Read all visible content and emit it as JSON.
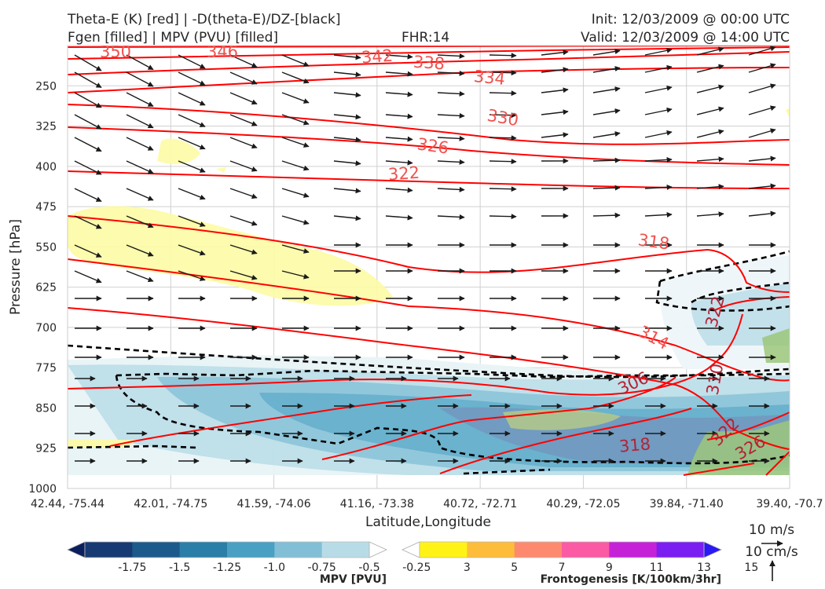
{
  "header": {
    "title_left_1": "Theta-E (K) [red] | -D(theta-E)/DZ-[black]",
    "title_left_2": "Fgen [filled] | MPV (PVU) [filled]",
    "title_center": "FHR:14",
    "title_right_1": "Init: 12/03/2009 @ 00:00 UTC",
    "title_right_2": "Valid: 12/03/2009 @ 14:00 UTC"
  },
  "chart_data": {
    "type": "cross-section",
    "xlabel": "Latitude,Longitude",
    "ylabel": "Pressure [hPa]",
    "x_ticks": [
      "42.44, -75.44",
      "42.01, -74.75",
      "41.59, -74.06",
      "41.16, -73.38",
      "40.72, -72.71",
      "40.29, -72.05",
      "39.84, -71.40",
      "39.40, -70.7"
    ],
    "y_ticks": [
      250,
      325,
      400,
      475,
      550,
      625,
      700,
      775,
      850,
      925,
      1000
    ],
    "ylim": [
      1000,
      175
    ],
    "grid": true,
    "theta_e_contour_labels": [
      "350",
      "346",
      "342",
      "338",
      "334",
      "330",
      "326",
      "322",
      "318",
      "314",
      "306",
      "322",
      "310",
      "318",
      "322",
      "326"
    ],
    "theta_e_color": "#ff0000",
    "dthetae_dz_color": "#000000",
    "mpv_colorbar": {
      "label": "MPV [PVU]",
      "ticks": [
        "-1.75",
        "-1.5",
        "-1.25",
        "-1.0",
        "-0.75",
        "-0.5",
        "-0.25"
      ],
      "colors": [
        "#0b1f5c",
        "#173a72",
        "#1d5a8c",
        "#2a7ea8",
        "#4aa0c3",
        "#82bfd6",
        "#b8dce7",
        "#ffffff"
      ]
    },
    "fgen_colorbar": {
      "label": "Frontogenesis [K/100km/3hr]",
      "ticks": [
        "3",
        "5",
        "7",
        "9",
        "11",
        "13",
        "15"
      ],
      "colors": [
        "#ffffff",
        "#fff315",
        "#fdbd3a",
        "#fd8a6e",
        "#fb5aa4",
        "#c522d8",
        "#7a1ef2",
        "#2a18f5"
      ]
    },
    "vector_key": {
      "horizontal": "10 m/s",
      "vertical": "10 cm/s"
    }
  }
}
